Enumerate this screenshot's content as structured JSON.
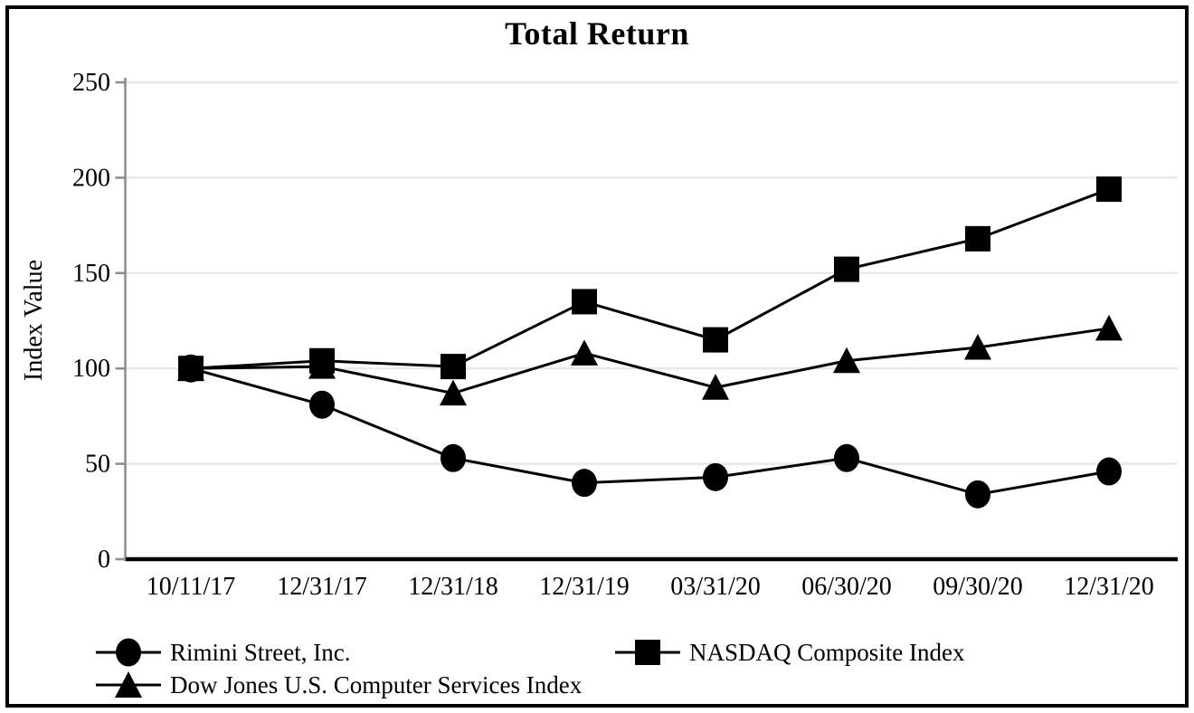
{
  "title": "Total Return",
  "chart_data": {
    "type": "line",
    "title": "Total Return",
    "xlabel": "",
    "ylabel": "Index Value",
    "ylim": [
      0,
      250
    ],
    "ytick_interval": 50,
    "yticks": [
      0,
      50,
      100,
      150,
      200,
      250
    ],
    "grid": "horizontal",
    "legend_position": "bottom",
    "categories": [
      "10/11/17",
      "12/31/17",
      "12/31/18",
      "12/31/19",
      "03/31/20",
      "06/30/20",
      "09/30/20",
      "12/31/20"
    ],
    "series": [
      {
        "name": "Rimini Street, Inc.",
        "marker": "circle",
        "values": [
          100,
          81,
          53,
          40,
          43,
          53,
          34,
          46
        ]
      },
      {
        "name": "NASDAQ Composite Index",
        "marker": "square",
        "values": [
          100,
          104,
          101,
          135,
          115,
          152,
          168,
          194
        ]
      },
      {
        "name": "Dow Jones U.S. Computer Services Index",
        "marker": "triangle",
        "values": [
          100,
          101,
          87,
          108,
          90,
          104,
          111,
          121
        ]
      }
    ],
    "colors": {
      "series": "#000000",
      "gridline": "#e8e8e8",
      "y_axis": "#8c8c8c",
      "x_axis": "#000000",
      "text": "#000000",
      "background": "#ffffff",
      "frame_border": "#000000"
    }
  }
}
